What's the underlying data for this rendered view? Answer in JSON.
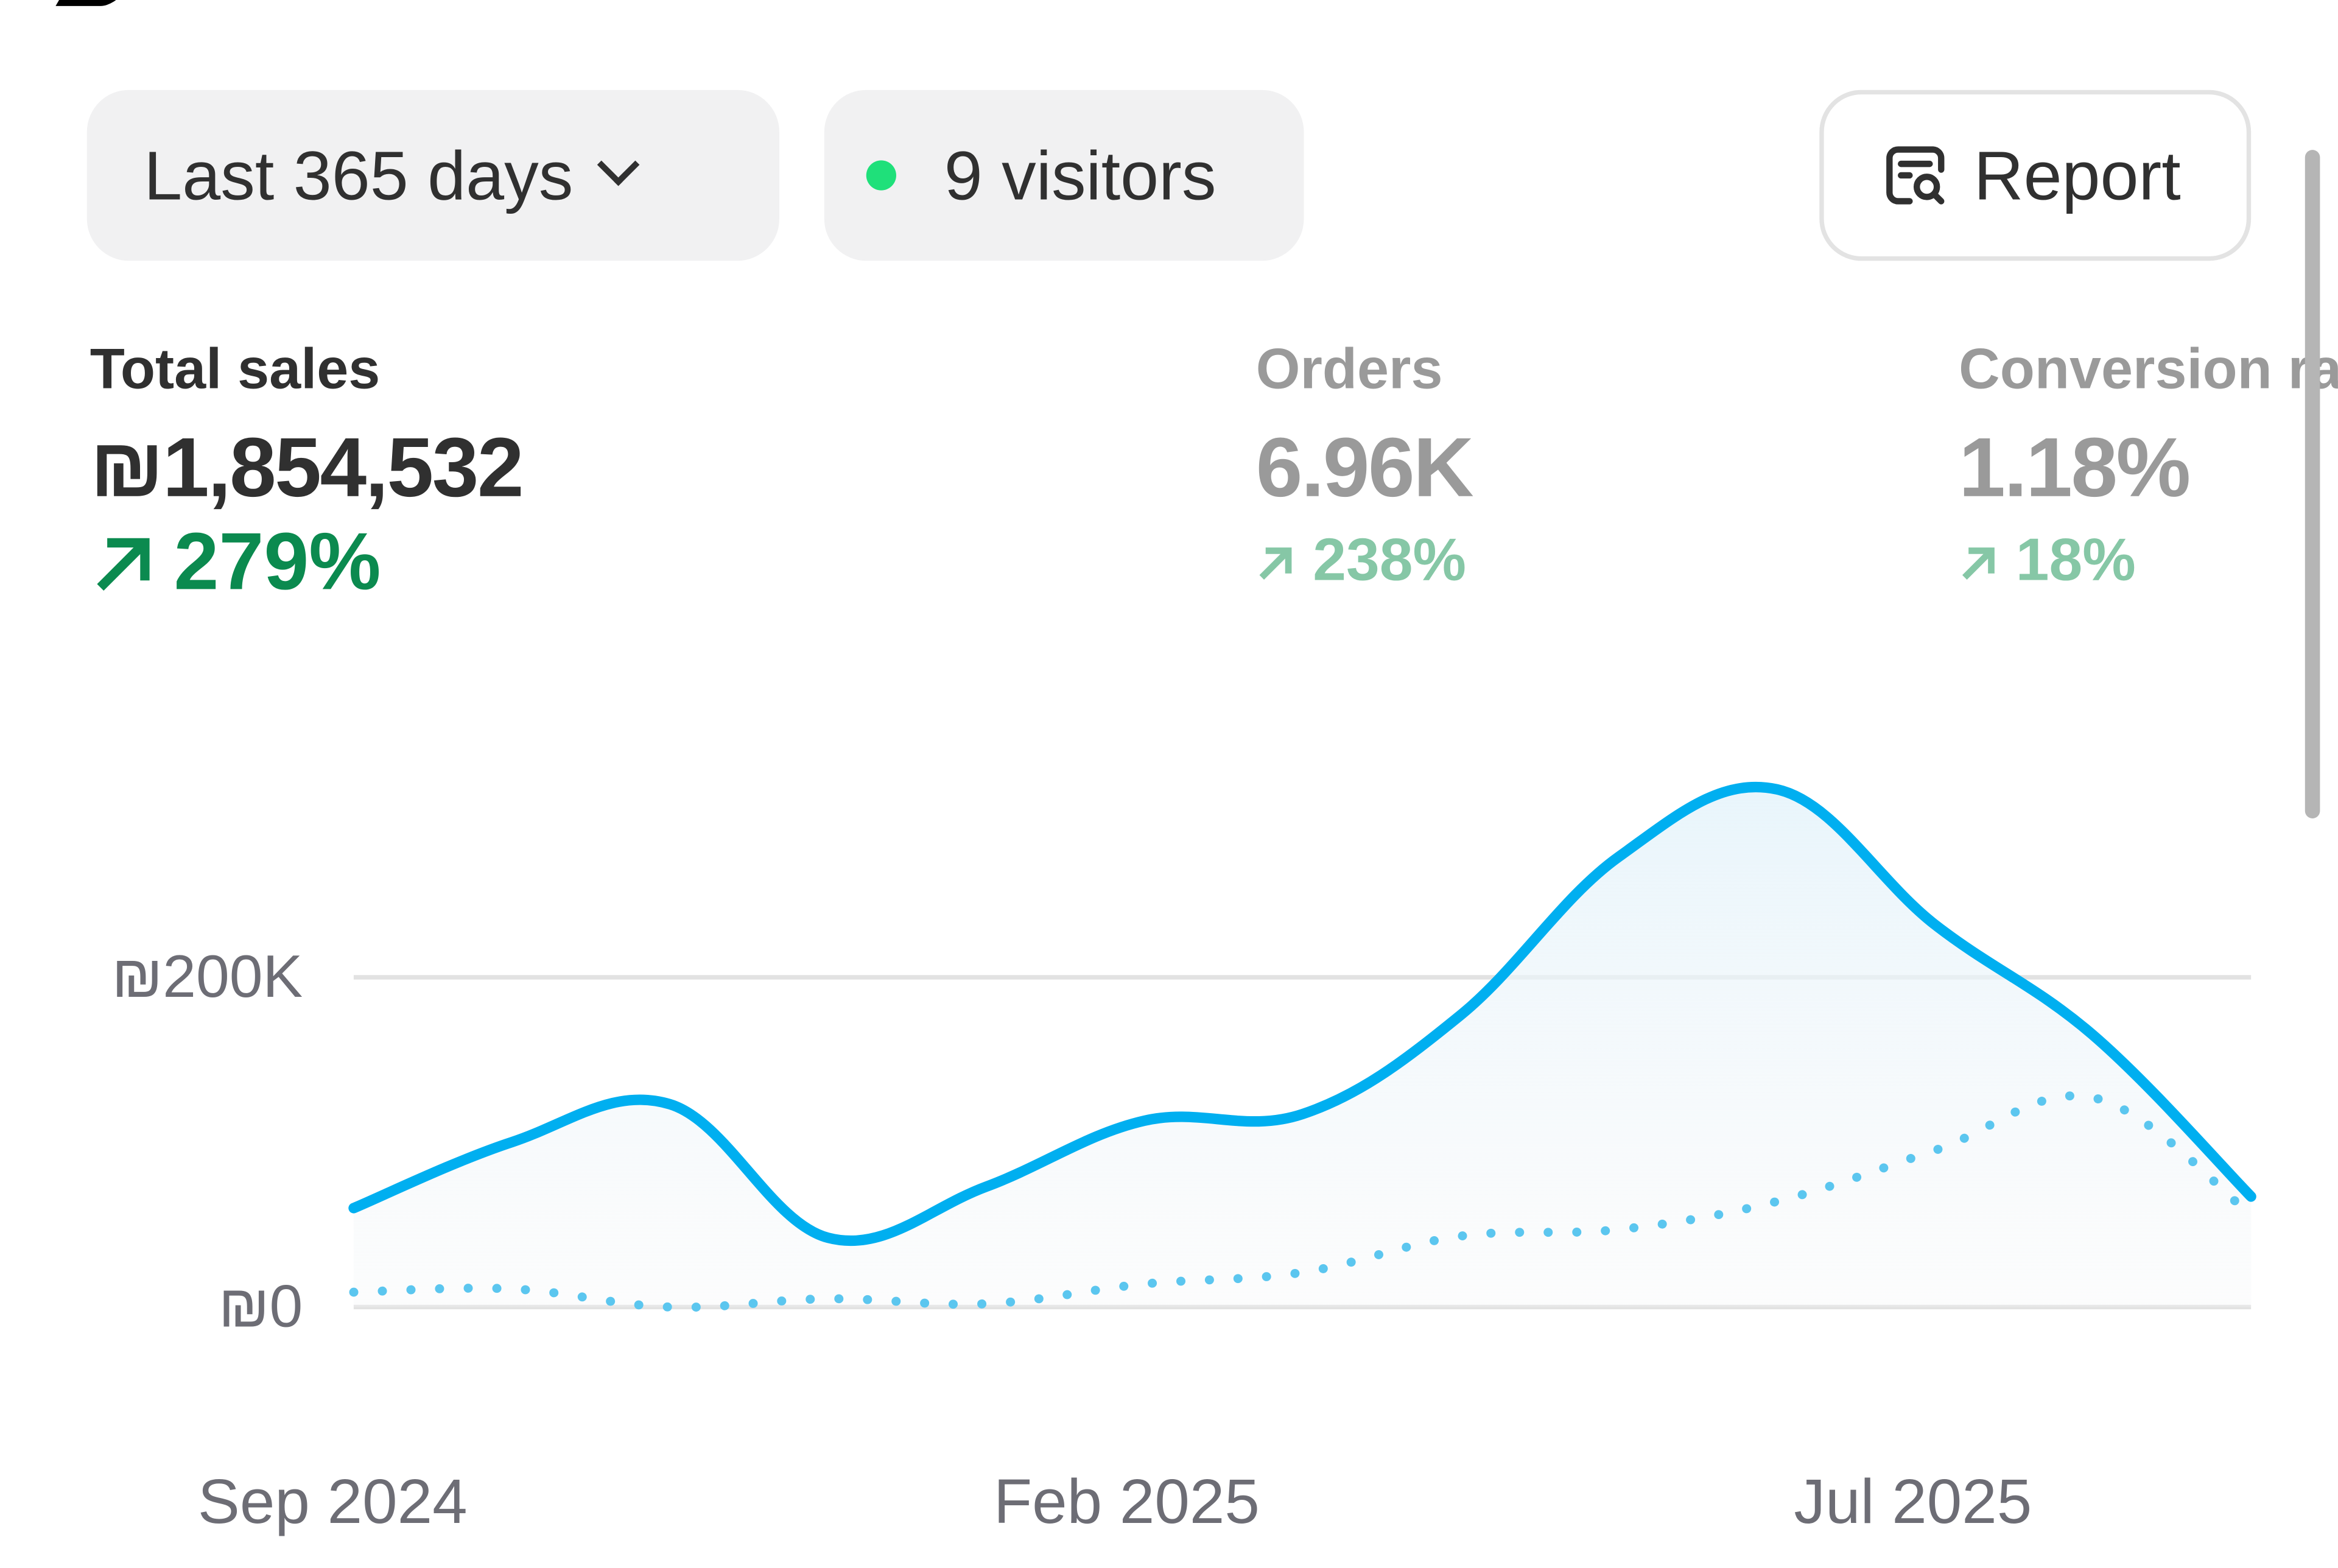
{
  "toolbar": {
    "range_label": "Last 365 days",
    "visitors_label": "9 visitors",
    "live_dot_color": "#1fe07a",
    "report_label": "Report"
  },
  "metrics": [
    {
      "label": "Total sales",
      "value": "₪1,854,532",
      "change": "279%",
      "direction": "up"
    },
    {
      "label": "Orders",
      "value": "6.96K",
      "change": "238%",
      "direction": "up"
    },
    {
      "label": "Conversion rate",
      "value": "1.18%",
      "change": "18%",
      "direction": "up"
    }
  ],
  "chart_data": {
    "type": "line",
    "ylabel_ticks": [
      "₪0",
      "₪200K"
    ],
    "y_tick_values": [
      0,
      200
    ],
    "ylim": [
      0,
      320
    ],
    "units": "thousands ILS",
    "x_tick_labels": [
      "Sep 2024",
      "Feb 2025",
      "Jul 2025"
    ],
    "x_tick_index": [
      0,
      5,
      10
    ],
    "series": [
      {
        "name": "current period",
        "style": "solid",
        "color": "#00aff0",
        "values": [
          60,
          100,
          123,
          42,
          73,
          113,
          117,
          177,
          273,
          314,
          232,
          165,
          67
        ]
      },
      {
        "name": "previous period",
        "style": "dotted",
        "color": "#5bc6ef",
        "values": [
          9,
          11,
          0,
          5,
          2,
          14,
          21,
          43,
          47,
          64,
          95,
          127,
          56
        ]
      }
    ],
    "grid": true
  }
}
